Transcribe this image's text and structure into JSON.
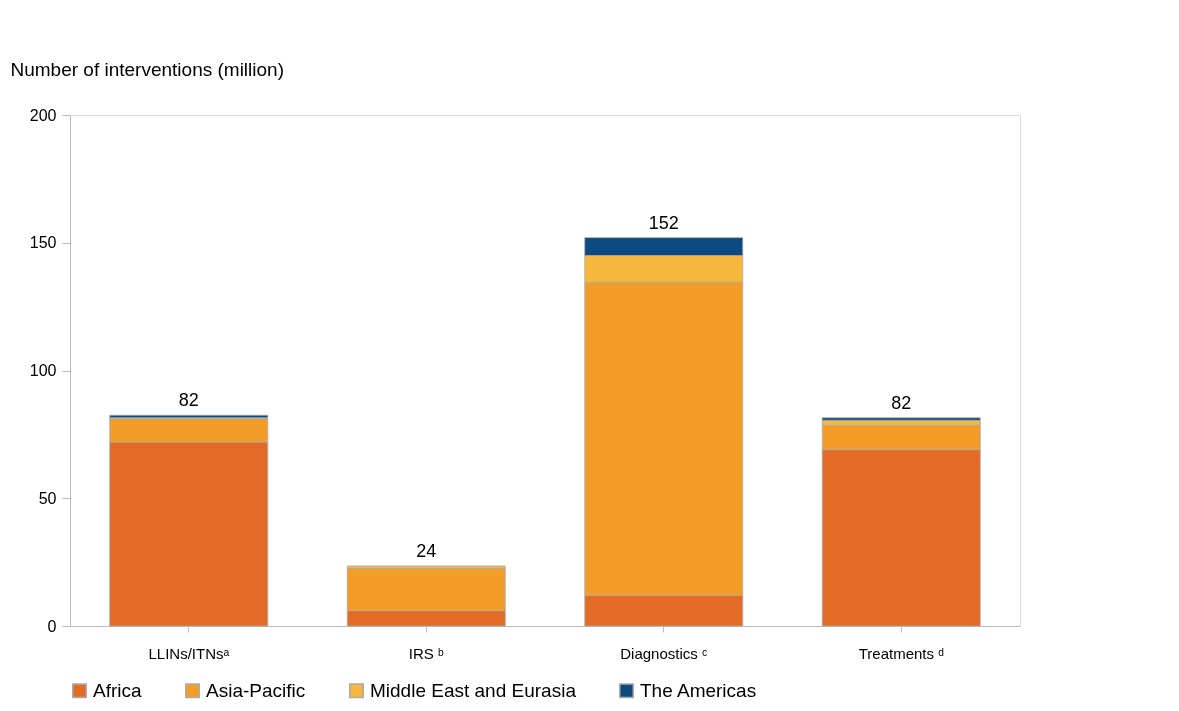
{
  "chart_data": {
    "type": "bar",
    "stacked": true,
    "ylabel": "Number of interventions (million)",
    "categories": [
      "LLINs/ITNsᵃ",
      "IRS ᵇ",
      "Diagnostics ᶜ",
      "Treatments ᵈ"
    ],
    "series": [
      {
        "name": "Africa",
        "color": "#e36b25",
        "values": [
          72,
          6,
          12,
          69
        ]
      },
      {
        "name": "Asia-Pacific",
        "color": "#f39c28",
        "values": [
          9,
          16.5,
          122.5,
          9.5
        ]
      },
      {
        "name": "Middle East and Eurasia",
        "color": "#f6b73c",
        "values": [
          0.5,
          1,
          10.5,
          2
        ]
      },
      {
        "name": "The Americas",
        "color": "#0d4a7f",
        "values": [
          1,
          null,
          7,
          1
        ]
      }
    ],
    "totals": [
      "82",
      "24",
      "152",
      "82"
    ],
    "ylim": [
      0,
      200
    ],
    "yticks": [
      0,
      50,
      100,
      150,
      200
    ],
    "grid": false,
    "legend": "bottom"
  }
}
